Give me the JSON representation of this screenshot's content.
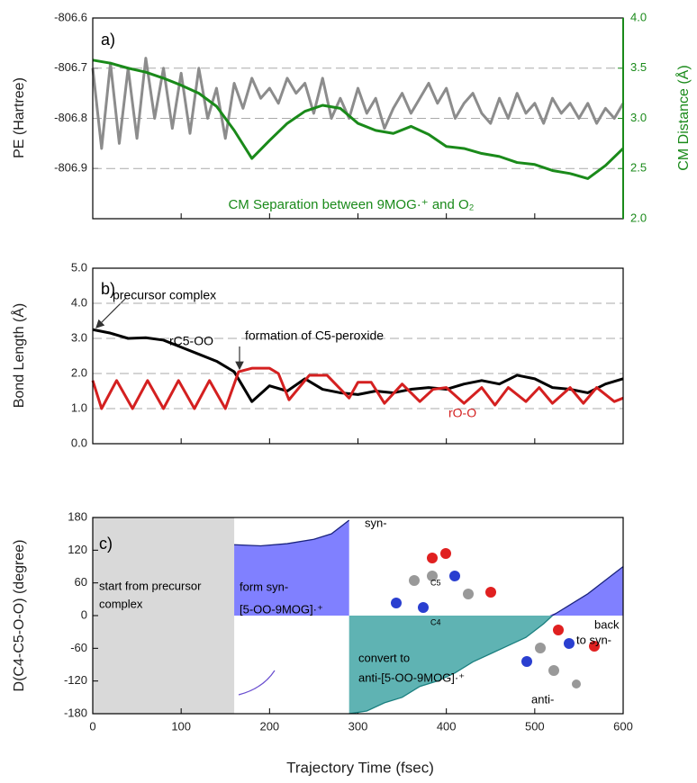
{
  "chart_data": [
    {
      "type": "line",
      "ylabel": "PE (Hartree)",
      "y2label": "CM Distance (Å)",
      "y2color": "#1a8a1a",
      "xlim": [
        0,
        600
      ],
      "xticks": [
        0,
        100,
        200,
        300,
        400,
        500,
        600
      ],
      "xtick_labels": false,
      "ylim": [
        -807.0,
        -806.6
      ],
      "yticks": [
        -806.6,
        -806.7,
        -806.8,
        -806.9
      ],
      "y2lim": [
        2.0,
        4.0
      ],
      "y2ticks": [
        {
          "value": 2.0,
          "label": "2.0"
        },
        {
          "value": 2.5,
          "label": "2.5"
        },
        {
          "value": 3.0,
          "label": "3.0"
        },
        {
          "value": 3.5,
          "label": "3.5"
        },
        {
          "value": 4.0,
          "label": "4.0"
        }
      ],
      "grid": true,
      "annotations": [
        "a)",
        "CM Separation between 9MOG·⁺ and O₂"
      ],
      "series": [
        {
          "color": "#8c8c8c",
          "x": [
            0,
            10,
            20,
            30,
            40,
            50,
            60,
            70,
            80,
            90,
            100,
            110,
            120,
            130,
            140,
            150,
            160,
            170,
            180,
            190,
            200,
            210,
            220,
            230,
            240,
            250,
            260,
            270,
            280,
            290,
            300,
            310,
            320,
            330,
            340,
            350,
            360,
            370,
            380,
            390,
            400,
            410,
            420,
            430,
            440,
            450,
            460,
            470,
            480,
            490,
            500,
            510,
            520,
            530,
            540,
            550,
            560,
            570,
            580,
            590,
            600
          ],
          "values": [
            -806.7,
            -806.86,
            -806.69,
            -806.85,
            -806.7,
            -806.84,
            -806.68,
            -806.8,
            -806.7,
            -806.82,
            -806.71,
            -806.83,
            -806.7,
            -806.8,
            -806.74,
            -806.84,
            -806.73,
            -806.78,
            -806.72,
            -806.76,
            -806.74,
            -806.77,
            -806.72,
            -806.75,
            -806.73,
            -806.79,
            -806.72,
            -806.8,
            -806.76,
            -806.8,
            -806.74,
            -806.79,
            -806.76,
            -806.82,
            -806.78,
            -806.75,
            -806.79,
            -806.76,
            -806.73,
            -806.77,
            -806.74,
            -806.8,
            -806.77,
            -806.75,
            -806.79,
            -806.81,
            -806.76,
            -806.8,
            -806.75,
            -806.79,
            -806.77,
            -806.81,
            -806.76,
            -806.79,
            -806.77,
            -806.8,
            -806.77,
            -806.81,
            -806.78,
            -806.8,
            -806.77
          ]
        },
        {
          "color": "#1a8a1a",
          "axis": "y2",
          "x": [
            0,
            20,
            40,
            60,
            80,
            100,
            120,
            140,
            160,
            180,
            200,
            220,
            240,
            260,
            280,
            300,
            320,
            340,
            360,
            380,
            400,
            420,
            440,
            460,
            480,
            500,
            520,
            540,
            560,
            580,
            600
          ],
          "values": [
            3.58,
            3.55,
            3.5,
            3.46,
            3.4,
            3.33,
            3.25,
            3.12,
            2.88,
            2.6,
            2.78,
            2.95,
            3.07,
            3.13,
            3.1,
            2.95,
            2.88,
            2.85,
            2.92,
            2.84,
            2.72,
            2.7,
            2.65,
            2.62,
            2.56,
            2.54,
            2.48,
            2.45,
            2.4,
            2.53,
            2.7
          ]
        }
      ]
    },
    {
      "type": "line",
      "ylabel": "Bond Length (Å)",
      "xlim": [
        0,
        600
      ],
      "xticks": [
        0,
        100,
        200,
        300,
        400,
        500,
        600
      ],
      "xtick_labels": false,
      "ylim": [
        0,
        5
      ],
      "yticks": [
        {
          "value": 0,
          "label": "0.0"
        },
        {
          "value": 1,
          "label": "1.0"
        },
        {
          "value": 2,
          "label": "2.0"
        },
        {
          "value": 3,
          "label": "3.0"
        },
        {
          "value": 4,
          "label": "4.0"
        },
        {
          "value": 5,
          "label": "5.0"
        }
      ],
      "grid": true,
      "annotations": [
        "b)",
        "precursor complex",
        "rC5-OO",
        "formation of C5-peroxide",
        "rO-O"
      ],
      "series": [
        {
          "color": "#000000",
          "x": [
            0,
            20,
            40,
            60,
            80,
            100,
            120,
            140,
            160,
            180,
            200,
            220,
            240,
            260,
            280,
            300,
            320,
            340,
            360,
            380,
            400,
            420,
            440,
            460,
            480,
            500,
            520,
            540,
            560,
            580,
            600
          ],
          "values": [
            3.25,
            3.15,
            3.0,
            3.02,
            2.95,
            2.75,
            2.55,
            2.35,
            2.05,
            1.2,
            1.65,
            1.5,
            1.85,
            1.55,
            1.45,
            1.4,
            1.5,
            1.45,
            1.55,
            1.6,
            1.55,
            1.7,
            1.8,
            1.7,
            1.95,
            1.85,
            1.6,
            1.55,
            1.45,
            1.7,
            1.85
          ]
        },
        {
          "color": "#d42020",
          "x": [
            0,
            10,
            27,
            45,
            62,
            80,
            97,
            115,
            132,
            150,
            165,
            180,
            200,
            210,
            222,
            245,
            265,
            290,
            300,
            315,
            330,
            350,
            370,
            385,
            400,
            420,
            440,
            455,
            470,
            490,
            505,
            520,
            540,
            555,
            570,
            590,
            600
          ],
          "values": [
            1.8,
            1.0,
            1.8,
            1.0,
            1.8,
            1.0,
            1.8,
            1.0,
            1.8,
            1.0,
            2.05,
            2.15,
            2.15,
            2.0,
            1.25,
            1.95,
            1.95,
            1.3,
            1.75,
            1.75,
            1.15,
            1.7,
            1.2,
            1.55,
            1.6,
            1.15,
            1.6,
            1.1,
            1.6,
            1.2,
            1.6,
            1.15,
            1.6,
            1.15,
            1.6,
            1.2,
            1.3
          ]
        }
      ]
    },
    {
      "type": "area",
      "ylabel": "D(C4-C5-O-O) (degree)",
      "xlabel": "Trajectory Time (fsec)",
      "xlim": [
        0,
        600
      ],
      "xticks": [
        0,
        100,
        200,
        300,
        400,
        500,
        600
      ],
      "xtick_labels": true,
      "ylim": [
        -180,
        180
      ],
      "yticks": [
        -180,
        -120,
        -60,
        0,
        60,
        120,
        180
      ],
      "grid": false,
      "shaded_span": [
        0,
        160
      ],
      "shaded_color": "#d9d9d9",
      "annotations": [
        "c)",
        "start from precursor",
        "complex",
        "form syn-",
        "[5-OO-9MOG]·⁺",
        "syn-",
        "C5",
        "C4",
        "convert to",
        "anti-[5-OO-9MOG]·⁺",
        "back",
        "to syn-",
        "anti-"
      ],
      "series": [
        {
          "color": "#8080ff",
          "line_color": "#1a237e",
          "x": [
            160,
            190,
            220,
            250,
            270,
            290
          ],
          "values": [
            130,
            128,
            132,
            140,
            150,
            175
          ]
        },
        {
          "color": "#5fb3b3",
          "line_color": "#1b7f7f",
          "x": [
            290,
            310,
            330,
            350,
            370,
            390,
            410,
            430,
            450,
            470,
            490,
            510,
            520
          ],
          "values": [
            -180,
            -175,
            -160,
            -150,
            -130,
            -120,
            -105,
            -85,
            -70,
            -55,
            -40,
            -15,
            0
          ]
        },
        {
          "color": "#8080ff",
          "line_color": "#1a237e",
          "x": [
            520,
            540,
            560,
            580,
            600
          ],
          "values": [
            0,
            20,
            40,
            65,
            90
          ]
        }
      ]
    }
  ]
}
